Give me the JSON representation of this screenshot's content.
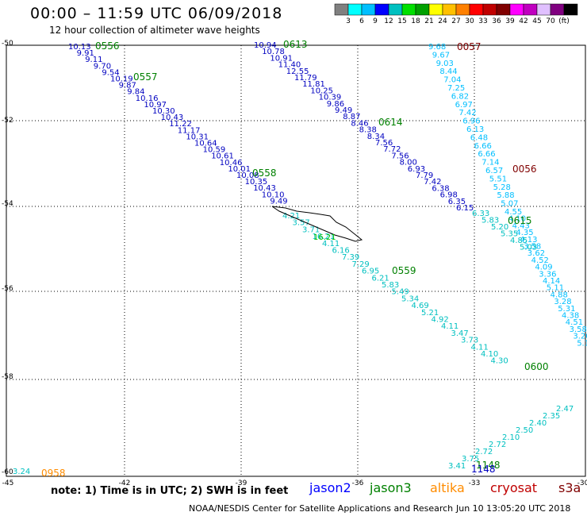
{
  "header": {
    "title": "00:00 – 11:59 UTC 06/09/2018",
    "subtitle": "12 hour collection of altimeter wave heights"
  },
  "colorbar": {
    "colors": [
      "#808080",
      "#00ffff",
      "#00bfff",
      "#0000ff",
      "#00c0c0",
      "#00e000",
      "#00a000",
      "#ffff00",
      "#ffc000",
      "#ff8000",
      "#ff0000",
      "#c00000",
      "#800000",
      "#ff00ff",
      "#c000c0",
      "#e0c0ff",
      "#800080",
      "#000000"
    ],
    "labels": [
      "3",
      "6",
      "9",
      "12",
      "15",
      "18",
      "21",
      "24",
      "27",
      "30",
      "33",
      "36",
      "39",
      "42",
      "45",
      "70",
      "(ft)"
    ]
  },
  "map": {
    "lat_labels": [
      "-50",
      "-52",
      "-54",
      "-56",
      "-58",
      "-60"
    ],
    "lon_labels": [
      "-45",
      "-42",
      "-39",
      "-36",
      "-33",
      "-30"
    ],
    "pass_ids": [
      {
        "id": "0556",
        "color": "#008000"
      },
      {
        "id": "0557",
        "color": "#008000"
      },
      {
        "id": "0558",
        "color": "#008000"
      },
      {
        "id": "0559",
        "color": "#008000"
      },
      {
        "id": "0613",
        "color": "#008000"
      },
      {
        "id": "0614",
        "color": "#008000"
      },
      {
        "id": "0615",
        "color": "#008000"
      },
      {
        "id": "0600",
        "color": "#008000"
      },
      {
        "id": "0057",
        "color": "#800000"
      },
      {
        "id": "0056",
        "color": "#800000"
      },
      {
        "id": "0958",
        "color": "#ff8c00"
      },
      {
        "id": "1148",
        "color": "#008000"
      },
      {
        "id": "1148",
        "color": "#0000c0"
      }
    ],
    "tracks": [
      {
        "name": "jason2-0556",
        "color": "#0000c0",
        "values": [
          "10.13",
          "9.91",
          "9.11",
          "9.70",
          "9.54",
          "10.19",
          "9.87",
          "9.84",
          "10.16",
          "10.97",
          "10.30",
          "10.43",
          "11.22",
          "11.17",
          "10.31",
          "10.64",
          "10.59",
          "10.61",
          "10.46",
          "10.01",
          "10.08",
          "10.35",
          "10.43",
          "10.10",
          "9.49"
        ]
      },
      {
        "name": "jason2-0613",
        "color": "#0000c0",
        "values": [
          "10.94",
          "10.78",
          "10.91",
          "11.40",
          "12.55",
          "11.79",
          "11.81",
          "10.25",
          "10.39",
          "9.86",
          "9.49",
          "8.87",
          "8.46",
          "8.38",
          "8.34",
          "7.56",
          "7.72",
          "7.56",
          "8.00",
          "6.93",
          "7.79",
          "7.42",
          "6.38",
          "6.98",
          "6.35",
          "6.15"
        ]
      },
      {
        "name": "jason2-0057",
        "color": "#00bfff",
        "values": [
          "9.68",
          "9.67",
          "9.03",
          "8.44",
          "7.04",
          "7.25",
          "6.82",
          "6.97",
          "7.42",
          "6.96",
          "6.13",
          "6.48",
          "6.66",
          "6.66",
          "7.14",
          "6.57",
          "5.51",
          "5.28",
          "5.88",
          "5.07",
          "4.55",
          "4.10",
          "4.43",
          "4.35",
          "4.13",
          "3.58",
          "3.62",
          "4.52",
          "4.09",
          "3.36",
          "4.14",
          "5.11",
          "4.88",
          "3.28",
          "5.31",
          "4.38",
          "4.51",
          "3.58",
          "3.20",
          "5.1"
        ]
      },
      {
        "name": "jason3-0559",
        "color": "#00c0c0",
        "values": [
          "4.21",
          "3.57",
          "3.71",
          "16.21",
          "4.11",
          "6.16",
          "7.39",
          "7.29",
          "6.95",
          "6.21",
          "5.83",
          "5.49",
          "5.34",
          "4.69",
          "5.21",
          "4.92",
          "4.11",
          "3.47",
          "3.73",
          "4.11",
          "4.10",
          "4.30"
        ]
      },
      {
        "name": "jason3-0615",
        "color": "#00c0c0",
        "values": [
          "6.33",
          "5.83",
          "5.20",
          "5.35",
          "4.85",
          "5.03"
        ]
      },
      {
        "name": "jason3-1148",
        "color": "#00c0c0",
        "values": [
          "3.41",
          "3.75",
          "2.72",
          "2.72",
          "2.10",
          "2.50",
          "2.40",
          "2.35",
          "2.47"
        ]
      },
      {
        "name": "altika-0958",
        "color": "#00c0c0",
        "values": [
          "3.24"
        ]
      }
    ],
    "coastline_label": "16.21"
  },
  "footer": {
    "note": "note:  1) Time is in UTC;  2) SWH is in feet",
    "legend": [
      {
        "name": "jason2",
        "color": "#0000ff"
      },
      {
        "name": "jason3",
        "color": "#008000"
      },
      {
        "name": "altika",
        "color": "#ff8c00"
      },
      {
        "name": "cryosat",
        "color": "#c00000"
      },
      {
        "name": "s3a",
        "color": "#800000"
      }
    ],
    "credit": "NOAA/NESDIS Center for Satellite Applications and Research",
    "timestamp": "Jun 10 13:05:20 UTC 2018"
  }
}
